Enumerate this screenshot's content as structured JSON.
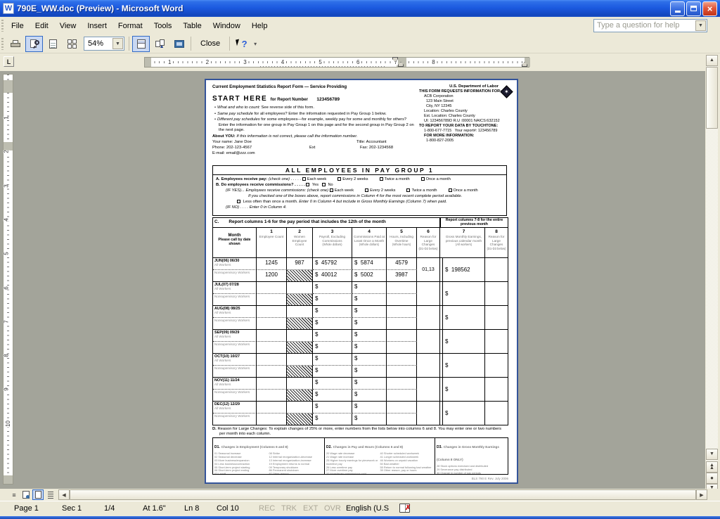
{
  "window": {
    "title": "790E_WW.doc (Preview) - Microsoft Word",
    "help_placeholder": "Type a question for help"
  },
  "menus": [
    "File",
    "Edit",
    "View",
    "Insert",
    "Format",
    "Tools",
    "Table",
    "Window",
    "Help"
  ],
  "toolbar": {
    "zoom": "54%",
    "close": "Close"
  },
  "rulers": {
    "horizontal": [
      "1",
      "2",
      "3",
      "4",
      "5",
      "6",
      "7",
      "8"
    ],
    "vertical": [
      "1",
      "2",
      "3",
      "4",
      "5",
      "6",
      "7",
      "8",
      "9",
      "10"
    ]
  },
  "form": {
    "heading": "Current Employment Statistics Report Form — Service Providing",
    "start_here": "START HERE",
    "report_number_label": "for Report Number",
    "report_number": "123456789",
    "bullets": [
      {
        "lead": "What and who to count:",
        "rest": " See reverse side of this form."
      },
      {
        "lead": "Same pay schedule",
        "rest": " for all employees?  Enter the information requested in Pay Group 1 below."
      },
      {
        "lead": "Different pay schedules",
        "rest": " for some employees—for example, weekly pay for some and monthly for others?  Enter the information for one group in Pay Group 1 on this page and for the second group in Pay Group 2 on the next page."
      }
    ],
    "about_label": "About YOU:",
    "about_text": " If this information is not correct, please call the information number.",
    "your_name": "Your name:  Jane Doe",
    "title": "Title:  Accountant",
    "phone": "Phone:  202-123-4567",
    "ext": "Ext",
    "fax": "Fax:  202-1234568",
    "email": "E-mail:  email@zzz.com",
    "agency": {
      "dept": "U.S. Department of Labor",
      "requests": "THIS FORM REQUESTS INFORMATION FOR:",
      "company": "ACB Corporation",
      "street": "123 Main Street",
      "city": "City, NY   12345",
      "location": "Location:  Charles County",
      "est_location": "Est. Location:  Charles County",
      "ids": "UI: 123456789D   R.U :00001   NAICS:632152",
      "touchtone": "TO REPORT YOUR DATA BY TOUCHTONE:",
      "touchtone_number": "1-800-677-7715",
      "report_ref": "Your report#: 123456789",
      "more_info": "FOR MORE INFORMATION:",
      "more_info_number": "1-800-827-2005"
    },
    "group_header": "ALL EMPLOYEES IN PAY GROUP 1",
    "a": {
      "label": "A.",
      "text": "Employees receive pay:",
      "check_one": "(check one) . . . . .",
      "options": [
        "Each week",
        "Every 2 weeks",
        "Twice a month",
        "Once a month"
      ]
    },
    "b": {
      "label": "B.",
      "text": "Do employees receive commissions? . . . . .",
      "yes": "Yes",
      "no": "No",
      "if_yes": "(IF YES)... Employees receive commissions:",
      "check_one": "(check one)",
      "options": [
        "Each week",
        "Every 2 weeks",
        "Twice a month",
        "Once a month"
      ],
      "note": "If you checked one of the boxes above, report commissions in Column 4 for the most recent complete period available.",
      "less_often": "Less often than once a month.",
      "less_often_note": " Enter 0 in Column 4 but include in Gross Monthly Earnings (Column 7) when paid.",
      "if_no": "(IF NO) . . . .",
      "if_no_note": "Enter 0 in Column 4."
    },
    "c": {
      "label": "C.",
      "header_left": "Report columns 1-6 for the pay period that includes the 12th of the month",
      "header_right": "Report columns 7-8 for the entire previous month",
      "month_title": "Month",
      "month_sub": "Please call by date shown",
      "columns": [
        {
          "num": "1",
          "desc": "Employee Count",
          "note": ""
        },
        {
          "num": "2",
          "desc": "Women Employee Count",
          "note": ""
        },
        {
          "num": "3",
          "desc": "Payroll, Excluding Commissions",
          "note": "(Whole dollars)"
        },
        {
          "num": "4",
          "desc": "Commissions Paid at Least Once a Month",
          "note": "(Whole dollars)"
        },
        {
          "num": "5",
          "desc": "Hours, Including Overtime",
          "note": "(Whole hours)"
        },
        {
          "num": "6",
          "desc": "Reason for Large Changes",
          "note": "(D1-D2 below)"
        },
        {
          "num": "7",
          "desc": "Gross Monthly Earnings, previous calendar month",
          "note": "(All workers)"
        },
        {
          "num": "8",
          "desc": "Reason for Large Changes",
          "note": "(D1-D3 below)"
        }
      ],
      "all_label": "All Workers",
      "nonsup_label": "Nonsupervisory Workers",
      "months": [
        {
          "name": "JUN(06) 06/30",
          "all": {
            "c1": "1245",
            "c2": "987",
            "c3": "$  45792",
            "c4": "$  5874",
            "c5": "4579"
          },
          "non": {
            "c1": "1200",
            "c3": "$  40012",
            "c4": "$  5002",
            "c5": "3987"
          },
          "c6": "01,13",
          "c7": "$  198562",
          "c8": ""
        },
        {
          "name": "JUL(07) 07/28",
          "all": {
            "c1": "",
            "c2": "",
            "c3": "$",
            "c4": "$",
            "c5": ""
          },
          "non": {
            "c1": "",
            "c3": "$",
            "c4": "$",
            "c5": ""
          },
          "c6": "",
          "c7": "$",
          "c8": ""
        },
        {
          "name": "AUG(08) 08/25",
          "all": {
            "c1": "",
            "c2": "",
            "c3": "$",
            "c4": "$",
            "c5": ""
          },
          "non": {
            "c1": "",
            "c3": "$",
            "c4": "$",
            "c5": ""
          },
          "c6": "",
          "c7": "$",
          "c8": ""
        },
        {
          "name": "SEP(09) 09/29",
          "all": {
            "c1": "",
            "c2": "",
            "c3": "$",
            "c4": "$",
            "c5": ""
          },
          "non": {
            "c1": "",
            "c3": "$",
            "c4": "$",
            "c5": ""
          },
          "c6": "",
          "c7": "$",
          "c8": ""
        },
        {
          "name": "OCT(10) 10/27",
          "all": {
            "c1": "",
            "c2": "",
            "c3": "$",
            "c4": "$",
            "c5": ""
          },
          "non": {
            "c1": "",
            "c3": "$",
            "c4": "$",
            "c5": ""
          },
          "c6": "",
          "c7": "$",
          "c8": ""
        },
        {
          "name": "NOV(11) 11/24",
          "all": {
            "c1": "",
            "c2": "",
            "c3": "$",
            "c4": "$",
            "c5": ""
          },
          "non": {
            "c1": "",
            "c3": "$",
            "c4": "$",
            "c5": ""
          },
          "c6": "",
          "c7": "$",
          "c8": ""
        },
        {
          "name": "DEC(12) 12/29",
          "all": {
            "c1": "",
            "c2": "",
            "c3": "$",
            "c4": "$",
            "c5": ""
          },
          "non": {
            "c1": "",
            "c3": "$",
            "c4": "$",
            "c5": ""
          },
          "c6": "",
          "c7": "$",
          "c8": ""
        }
      ]
    },
    "d": {
      "label": "D.",
      "text": "Reason for Large Changes:  To explain changes of 25% or more, enter numbers from the lists below into columns 6 and 8.  You may enter one or two numbers per month into each column.",
      "boxes": [
        {
          "code": "D1.",
          "title": "Changes in Employment (Columns 6 and 8)",
          "col1": [
            "01  Seasonal increase",
            "02  Seasonal decrease",
            "03  More business/expansion",
            "04  Less business/contraction",
            "05  Short-term project starting",
            "06  Short-term project ending",
            "07  Layoff"
          ],
          "col2": [
            "08  Strike",
            "12  Internal reorganization-decrease",
            "13  Internal reorganization-increase",
            "19  Employment returns to normal",
            "09  Temporary shutdown",
            "86  Permanent shutdown",
            "87  Other reason"
          ]
        },
        {
          "code": "D2.",
          "title": "Changes in Pay and Hours (Columns 6 and 8)",
          "col1": [
            "20  Wage rate decrease",
            "21  Wage rate increase",
            "25  Higher hourly earnings for piecework or incentive pay",
            "26  Less overtime pay",
            "27  More overtime pay",
            "32  More/fewer commissions paid"
          ],
          "col2": [
            "40  Shorter scheduled workweek",
            "41  Longer scheduled workweek",
            "46  Workers on unpaid vacation",
            "50  Bad weather",
            "55  Return to normal following bad weather",
            "39  Other reason, pay or hours"
          ]
        },
        {
          "code": "D3.",
          "title": "Changes in Gross Monthly Earnings (Column 8 ONLY)",
          "col1": [
            "28  Stock options exercised and distributed",
            "29  Severance pay distributed",
            "30  Change in number of pay periods",
            "31  Bonuses, executive pay, or profit distributions",
            "93  Quarterly or annual commissions paid",
            "95  Other reason"
          ],
          "col2": []
        }
      ]
    },
    "footer": "BLS 790 E   Rev. July 2006"
  },
  "status": {
    "page": "Page 1",
    "section": "Sec 1",
    "page_of": "1/4",
    "at": "At 1.6\"",
    "line": "Ln 8",
    "col": "Col 10",
    "rec": "REC",
    "trk": "TRK",
    "ext": "EXT",
    "ovr": "OVR",
    "language": "English (U.S"
  }
}
